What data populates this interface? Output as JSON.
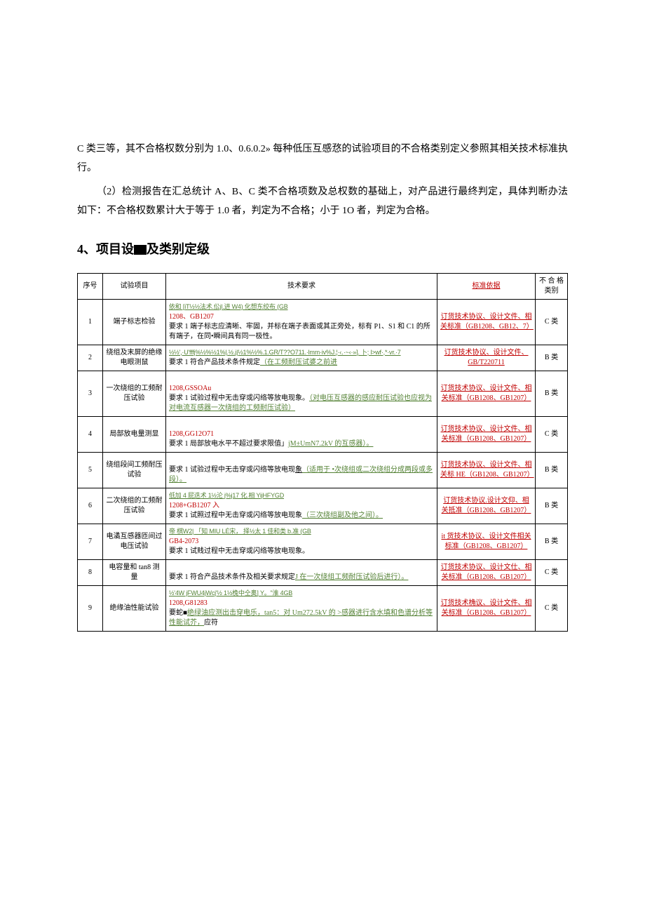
{
  "intro": {
    "p1": "C 类三等，其不合格权数分别为 1.0、0.6.0.2» 每种低压互感㤵的试验项目的不合格类别定义参照其相关技术标准执行。",
    "p2": "（2）检测报告在汇总统计 A、B、C 类不合格项数及总权数的基础上，对产品进行最终判定，具体判断办法如下：不合格权数累计大于等于 1.0 者，判定为不合格；小于 1O 者，判定为合格。"
  },
  "heading_prefix": "4、项目设",
  "heading_suffix": "及类别定级",
  "columns": {
    "num": "序号",
    "name": "试验项目",
    "req": "技术要求",
    "std": "标准依据",
    "grade": "不 合 格\n类别"
  },
  "rows": [
    {
      "num": "1",
      "name": "端子标志检验",
      "req_line1": "依和 [iT½½法术.伀jl.进 W4) 化想东绞布 (GB",
      "req_line2": "1208、GB1207",
      "req_main": "要求 1 端子标志应清晰、牢固，并标在端子表面或其正旁处，标有 P1、S1 和 C1 的所有端子，在同•瞬间具有同一极性。",
      "std": "订货技术协议、设计文件、相关标准（GB1208、GB12、7）",
      "grade": "C 类"
    },
    {
      "num": "2",
      "name": "绕组及末屏的绝缘电眼测鼠",
      "req_line1": "½½',·U'fffj%½%½1%|.½.j|½1%½%.1.GR/T??O711.·lmm·iv%J.¦·‹․·~‹·»].  卜;  l>wf·,*·vr.·7",
      "req_main_prefix": "要求 1 符合产品技术条件规定",
      "req_main_link": "（在工频耐压试婆之前进",
      "std": "订货技术协议、设计文件、GB/T220711",
      "grade": "B 类"
    },
    {
      "num": "3",
      "name": "一次绕组的工频耐压试验",
      "req_line1": "1208,GSSOAu",
      "req_main_prefix": "要求 1 试验过程中无击穿或闪络等放电现象。",
      "req_main_link": "（对电压互感器的感应耐压试验也应视为对电流互感器一次绕组的工频耐压试验）",
      "std": "订货技术协议、设计文件、相关标准（GB1208、GB1207）",
      "grade": "B 类"
    },
    {
      "num": "4",
      "name": "局部放电量测显",
      "req_line1": "1208,GG12O71",
      "req_main_prefix": "要求 1 局部放电水平不超过要求限值」",
      "req_main_link": "jM±UmN7.2kV 的互感器）。",
      "std": "订货技术协议、设计文件、相关标准（GB1208、GB1207）",
      "grade": "C 类"
    },
    {
      "num": "5",
      "name": "绕组段间工频耐压试验",
      "req_main": "要求 1 试验过程中无击穿或闪络等放电现",
      "req_suffix": "象",
      "req_link": "（适用于  •次绕组或二次绕组分成两段或多段）。",
      "std": "订货技术协议、设计文件、相关标 HE（GB1208、GB1207）",
      "grade": "B 类"
    },
    {
      "num": "6",
      "name": "二次绕组的工频耐压试验",
      "req_line1": "低加   4 屁迭术 1½沦 j%j17 化.相 YijHFYGD",
      "req_line2": "1208+GB1207 入",
      "req_main": "要求 1 试照过程中无击穿或闪络等放电现象",
      "req_link": "（三次绕组副及他之间）。",
      "std": "订货技术协议.设计文仰、相关抵准（GB1208、GB1207）",
      "grade": "B 类"
    },
    {
      "num": "7",
      "name": "电潏互感器匝间过电压试验",
      "req_line1": "帝 棋W2| 「知 MIU LÉ宋， 择½太 1 佳和类 b.准 (GB",
      "req_line2": "GB4-2073",
      "req_main": "要求 1 试贱过程中无击穿或闪络等放电现象。",
      "std": "it 货技术协议、设计文件相关标准（GB1208、GB1207）",
      "grade": "B 类"
    },
    {
      "num": "8",
      "name": "电容量和 tan8 测量",
      "req_main": "要求 1 符合产品技术条件及相关要求规定",
      "req_link": "J 在一次绕组工频耐压试验后进行）。",
      "std": "订货技术协议、设计文仕、相关标准（GB1208、GB1207）",
      "grade": "C 类"
    },
    {
      "num": "9",
      "name": "绝缘油性能试验",
      "req_line1": "½'4W jFWU4jWcj'½ 1½㭸中仝奥] Y。\"淮 4GB",
      "req_line2": "1208,G81283",
      "req_main_prefix": "要蛇■",
      "req_link": "绝绿油应测出击穿电乐，tan5：对 Um272.5kV 的  >感器进行含水填和色谱分析等性能试芥，",
      "req_suffix": "应符",
      "std": "订货技术桷议、设计文件、相关标准（GB1208、GB1207）",
      "grade": "C 类"
    }
  ]
}
